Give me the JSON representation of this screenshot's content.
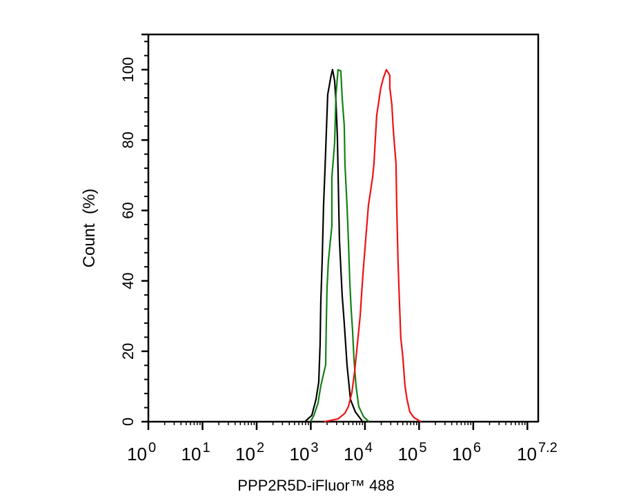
{
  "chart_data": {
    "type": "line",
    "title": "",
    "xlabel": "PPP2R5D-iFluor™ 488",
    "ylabel": "Count  (%)",
    "x_scale": "log10",
    "xlim": [
      1,
      15848932
    ],
    "ylim": [
      0,
      110
    ],
    "x_ticks": [
      {
        "base": "10",
        "exp": "0"
      },
      {
        "base": "10",
        "exp": "1"
      },
      {
        "base": "10",
        "exp": "2"
      },
      {
        "base": "10",
        "exp": "3"
      },
      {
        "base": "10",
        "exp": "4"
      },
      {
        "base": "10",
        "exp": "5"
      },
      {
        "base": "10",
        "exp": "6"
      },
      {
        "base": "10",
        "exp": "7.2"
      }
    ],
    "y_ticks": [
      "0",
      "20",
      "40",
      "60",
      "80",
      "100"
    ],
    "grid": false,
    "legend": "none",
    "series": [
      {
        "color": "#000000",
        "x": [
          802,
          1045,
          1247,
          1400,
          1486,
          1531,
          1622,
          1722,
          1824,
          2051,
          2377,
          2518,
          2748,
          2917,
          3090,
          3184,
          3281,
          3381,
          3581,
          3802,
          4150,
          4667,
          5395,
          6637,
          8892
        ],
        "y": [
          0.2,
          1.8,
          6.3,
          11.2,
          22,
          33.9,
          45.7,
          61.4,
          71.3,
          92.9,
          98.4,
          100,
          96.9,
          90.9,
          81.1,
          71.3,
          61.4,
          51.6,
          43.7,
          35.8,
          28,
          16.1,
          6.3,
          2.8,
          0.2
        ]
      },
      {
        "color": "#138013",
        "x": [
          986,
          1141,
          1361,
          1531,
          1879,
          1936,
          1992,
          2113,
          2447,
          2448,
          2748,
          2917,
          3184,
          3581,
          3802,
          4150,
          4272,
          4667,
          4943,
          5248,
          5559,
          5902,
          6252,
          6823,
          7674,
          9441,
          11910
        ],
        "y": [
          0,
          1.8,
          5.3,
          10.2,
          16.1,
          28,
          37.8,
          45.7,
          55.5,
          69.3,
          79.1,
          92.9,
          100,
          99.6,
          91.9,
          84.1,
          73.2,
          61.4,
          51.6,
          39.8,
          31.9,
          26,
          18.1,
          10.2,
          4.3,
          1.4,
          0
        ]
      },
      {
        "color": "#ee1111",
        "x": [
          1770,
          3184,
          4272,
          4943,
          5727,
          6442,
          7244,
          8147,
          9162,
          10300,
          11580,
          13800,
          14650,
          16480,
          17990,
          19640,
          22080,
          24830,
          28770,
          28800,
          31410,
          33280,
          37410,
          38550,
          40840,
          43350,
          45920,
          50230,
          54810,
          59840,
          67300,
          80170,
          107600
        ],
        "y": [
          0,
          0.8,
          2.4,
          4.3,
          8.3,
          14.2,
          22,
          29.9,
          41.7,
          51.6,
          61.4,
          69.3,
          73.2,
          87,
          90.9,
          94.9,
          97.8,
          100,
          98.4,
          94.9,
          90,
          83.1,
          73.2,
          61.4,
          45.7,
          33.9,
          24,
          18.1,
          10.2,
          6.3,
          2.8,
          1.2,
          0
        ]
      }
    ]
  }
}
